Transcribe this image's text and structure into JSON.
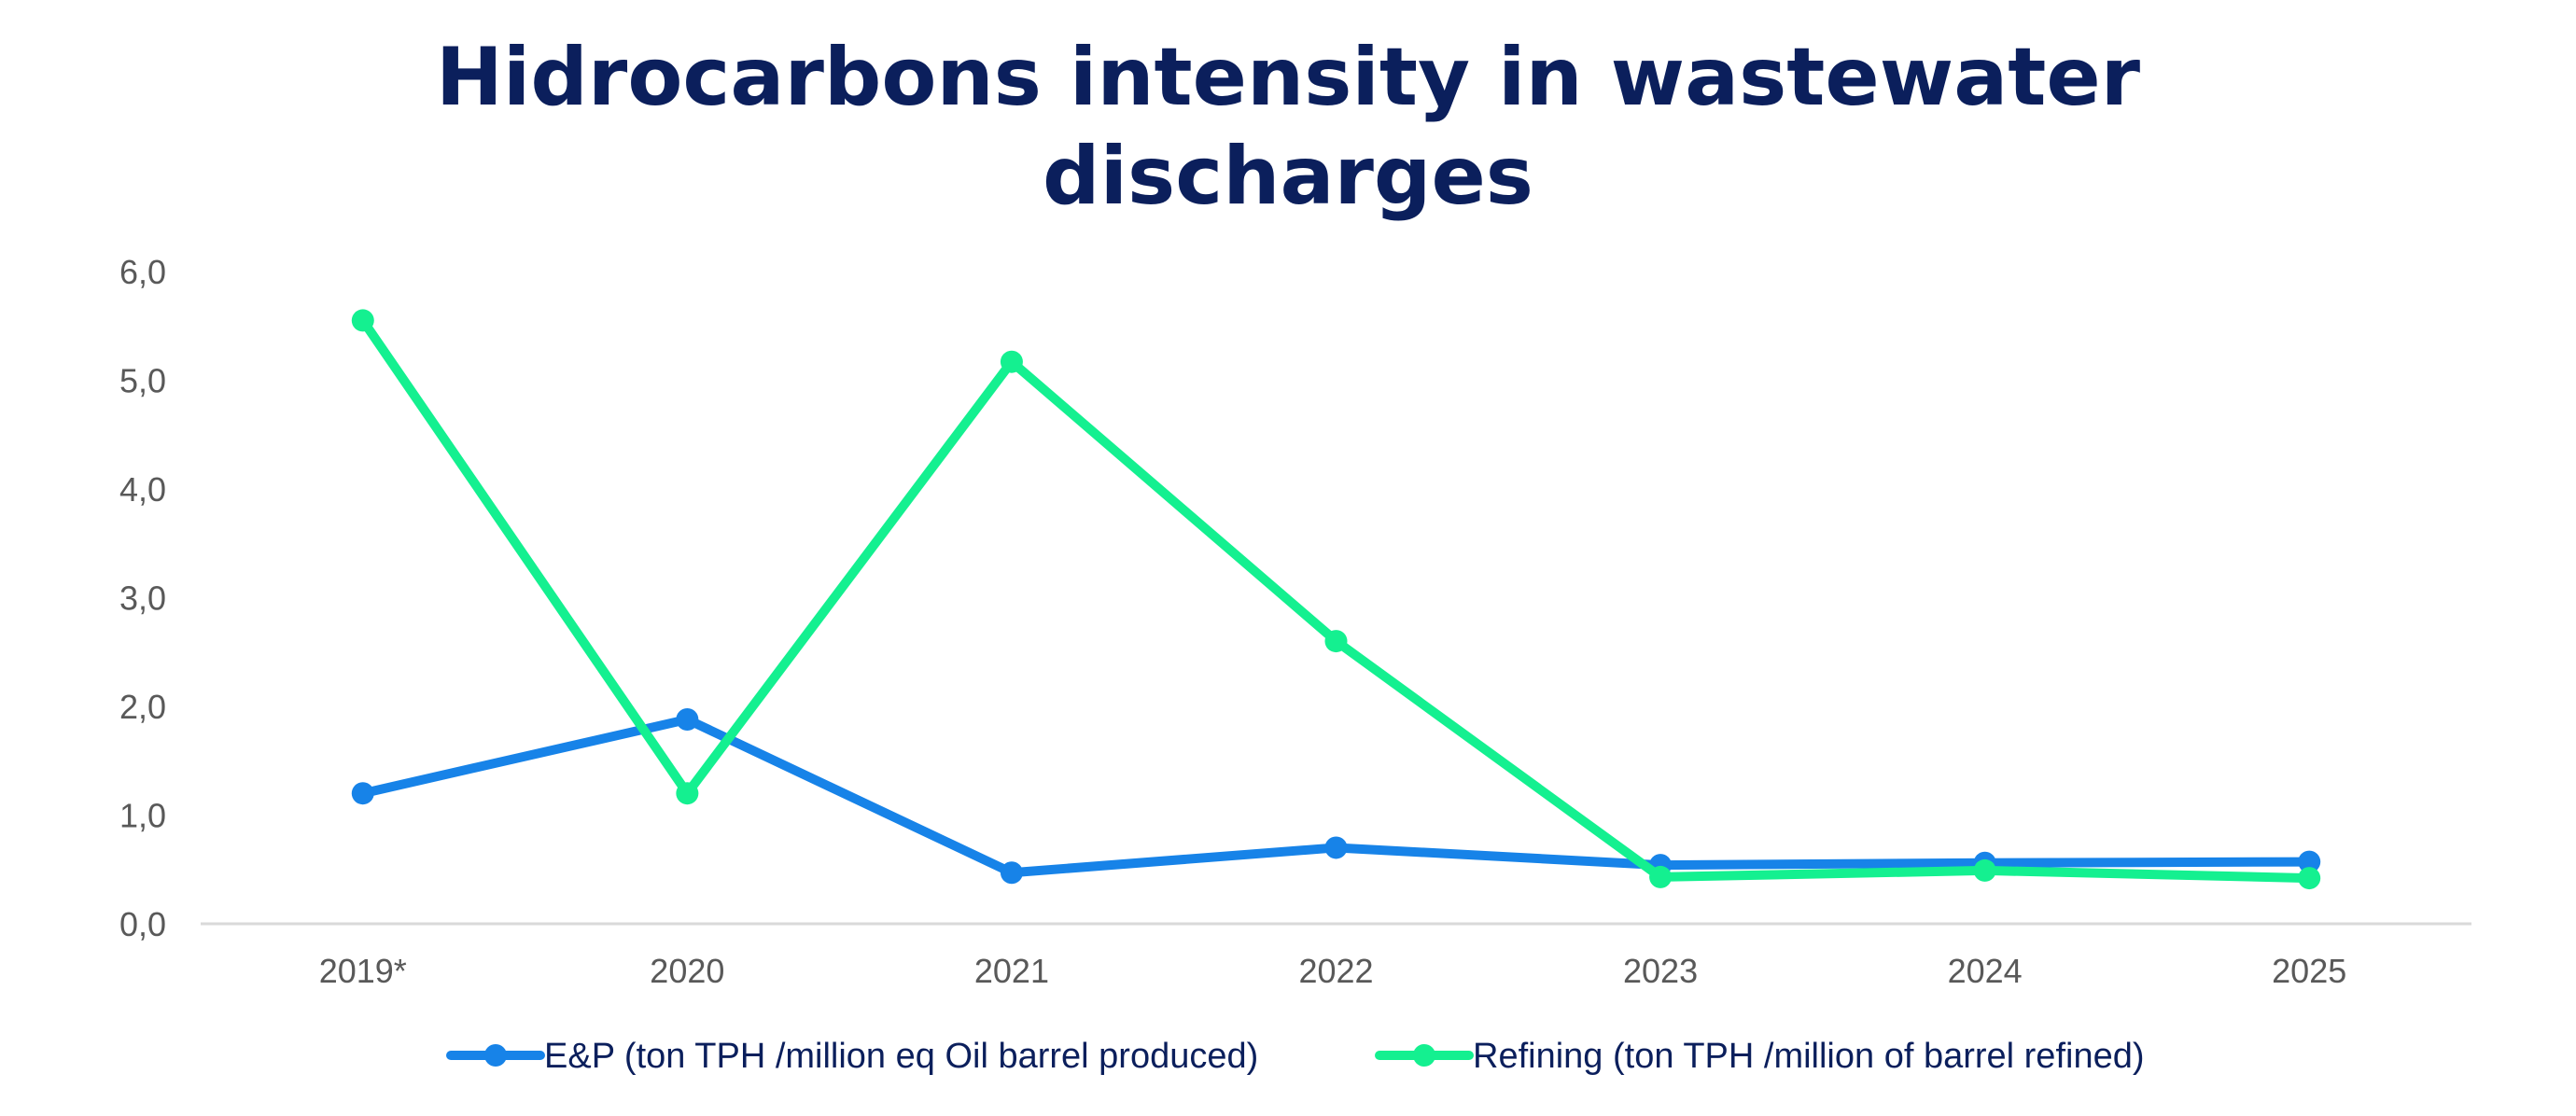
{
  "chart_data": {
    "type": "line",
    "title_lines": [
      "Hidrocarbons intensity in wastewater",
      "discharges"
    ],
    "categories": [
      "2019*",
      "2020",
      "2021",
      "2022",
      "2023",
      "2024",
      "2025"
    ],
    "ylim": [
      0,
      6
    ],
    "yticks": [
      "0,0",
      "1,0",
      "2,0",
      "3,0",
      "4,0",
      "5,0",
      "6,0"
    ],
    "xlabel": "",
    "ylabel": "",
    "grid": false,
    "legend_position": "bottom",
    "series": [
      {
        "name": "E&P (ton TPH /million eq Oil barrel produced)",
        "color": "#1783e8",
        "values": [
          1.2,
          1.88,
          0.47,
          0.7,
          0.54,
          0.56,
          0.57
        ]
      },
      {
        "name": "Refining (ton TPH /million of barrel refined)",
        "color": "#14f090",
        "values": [
          5.55,
          1.2,
          5.17,
          2.6,
          0.43,
          0.49,
          0.42
        ]
      }
    ]
  }
}
